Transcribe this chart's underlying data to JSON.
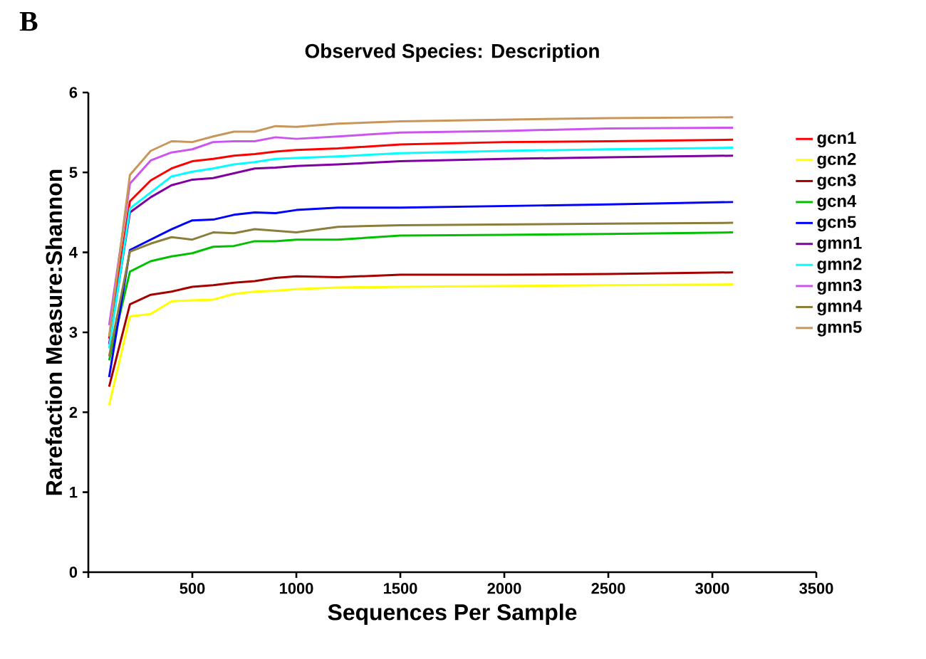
{
  "chart_data": {
    "type": "line",
    "title": "Observed Species:  Description",
    "xlabel": "Sequences Per Sample",
    "ylabel": "Rarefaction Measure:Shannon",
    "annotations": [
      "B"
    ],
    "legend": "right",
    "x": [
      100,
      200,
      300,
      400,
      500,
      600,
      700,
      800,
      900,
      1000,
      1200,
      1500,
      2000,
      2500,
      3100
    ],
    "xlim": [
      0,
      3500
    ],
    "xticks": [
      {
        "value": 0,
        "label": null
      },
      500,
      1000,
      1500,
      2000,
      2500,
      3000,
      3500
    ],
    "ylim": [
      0,
      6
    ],
    "yticks": [
      0,
      1,
      2,
      3,
      4,
      5,
      6
    ],
    "series": [
      {
        "name": "gcn1",
        "color": "#ff0000",
        "values": [
          2.92,
          4.64,
          4.9,
          5.05,
          5.14,
          5.17,
          5.21,
          5.23,
          5.26,
          5.28,
          5.3,
          5.35,
          5.38,
          5.39,
          5.41
        ]
      },
      {
        "name": "gcn2",
        "color": "#ffff00",
        "values": [
          2.09,
          3.2,
          3.23,
          3.39,
          3.4,
          3.41,
          3.48,
          3.51,
          3.52,
          3.54,
          3.56,
          3.57,
          3.58,
          3.59,
          3.6
        ]
      },
      {
        "name": "gcn3",
        "color": "#a50000",
        "values": [
          2.32,
          3.35,
          3.47,
          3.51,
          3.57,
          3.59,
          3.62,
          3.64,
          3.68,
          3.7,
          3.69,
          3.72,
          3.72,
          3.73,
          3.75
        ]
      },
      {
        "name": "gcn4",
        "color": "#00c000",
        "values": [
          2.65,
          3.76,
          3.89,
          3.95,
          3.99,
          4.07,
          4.08,
          4.14,
          4.14,
          4.16,
          4.16,
          4.21,
          4.22,
          4.23,
          4.25
        ]
      },
      {
        "name": "gcn5",
        "color": "#0000ff",
        "values": [
          2.44,
          4.03,
          4.16,
          4.29,
          4.4,
          4.41,
          4.47,
          4.5,
          4.49,
          4.53,
          4.56,
          4.56,
          4.58,
          4.6,
          4.63
        ]
      },
      {
        "name": "gmn1",
        "color": "#7f00a0",
        "values": [
          2.85,
          4.5,
          4.69,
          4.84,
          4.91,
          4.93,
          4.99,
          5.05,
          5.06,
          5.08,
          5.1,
          5.14,
          5.17,
          5.19,
          5.21
        ]
      },
      {
        "name": "gmn2",
        "color": "#00ffff",
        "values": [
          2.8,
          4.55,
          4.75,
          4.95,
          5.01,
          5.05,
          5.1,
          5.13,
          5.17,
          5.18,
          5.2,
          5.24,
          5.27,
          5.29,
          5.31
        ]
      },
      {
        "name": "gmn3",
        "color": "#cc55ee",
        "values": [
          3.09,
          4.86,
          5.15,
          5.25,
          5.29,
          5.38,
          5.39,
          5.39,
          5.44,
          5.42,
          5.45,
          5.5,
          5.52,
          5.55,
          5.56
        ]
      },
      {
        "name": "gmn4",
        "color": "#8b7d3a",
        "values": [
          2.7,
          4.01,
          4.11,
          4.19,
          4.16,
          4.25,
          4.24,
          4.29,
          4.27,
          4.25,
          4.32,
          4.34,
          4.35,
          4.36,
          4.37
        ]
      },
      {
        "name": "gmn5",
        "color": "#c8965a",
        "values": [
          2.95,
          4.97,
          5.27,
          5.39,
          5.38,
          5.45,
          5.51,
          5.51,
          5.58,
          5.57,
          5.61,
          5.64,
          5.66,
          5.68,
          5.69
        ]
      }
    ]
  }
}
